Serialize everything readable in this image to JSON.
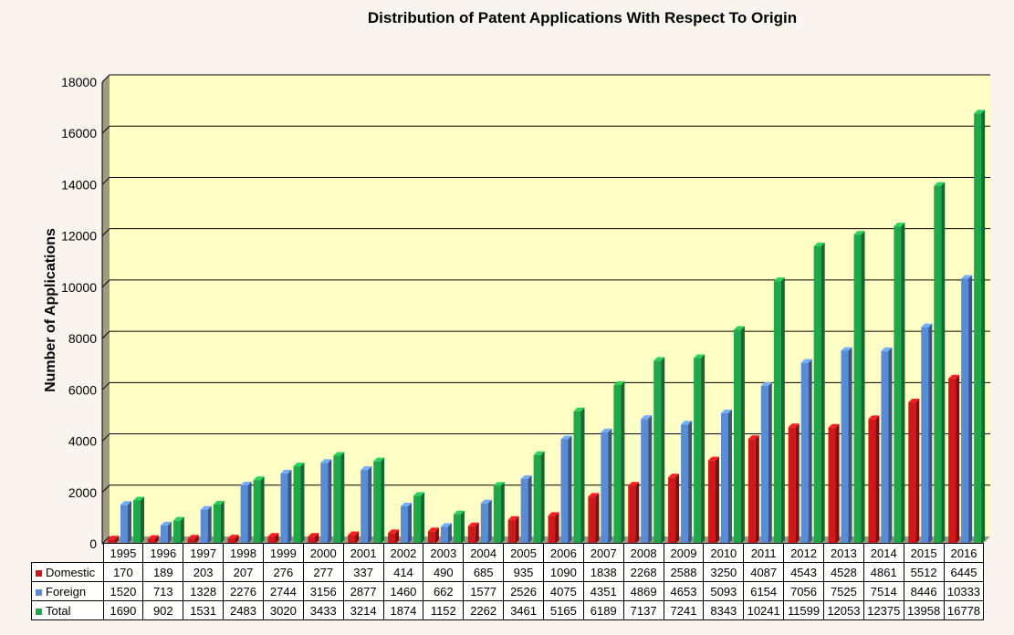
{
  "colors": {
    "plot_bg": "#ffffc6",
    "wall_side": "#a09a7e",
    "floor": "#9a9a86",
    "gridline": "#000000",
    "Domestic": "#d0181c",
    "Foreign": "#5a8bd6",
    "Total": "#1fa84a"
  },
  "chart_data": {
    "type": "bar",
    "title": "Distribution of Patent Applications With Respect To Origin",
    "ylabel": "Number of Applications",
    "xlabel": "",
    "ylim": [
      0,
      18000
    ],
    "yticks": [
      0,
      2000,
      4000,
      6000,
      8000,
      10000,
      12000,
      14000,
      16000,
      18000
    ],
    "grid": true,
    "legend": "data-table-bottom",
    "categories": [
      "1995",
      "1996",
      "1997",
      "1998",
      "1999",
      "2000",
      "2001",
      "2002",
      "2003",
      "2004",
      "2005",
      "2006",
      "2007",
      "2008",
      "2009",
      "2010",
      "2011",
      "2012",
      "2013",
      "2014",
      "2015",
      "2016"
    ],
    "series": [
      {
        "name": "Domestic",
        "values": [
          170,
          189,
          203,
          207,
          276,
          277,
          337,
          414,
          490,
          685,
          935,
          1090,
          1838,
          2268,
          2588,
          3250,
          4087,
          4543,
          4528,
          4861,
          5512,
          6445
        ]
      },
      {
        "name": "Foreign",
        "values": [
          1520,
          713,
          1328,
          2276,
          2744,
          3156,
          2877,
          1460,
          662,
          1577,
          2526,
          4075,
          4351,
          4869,
          4653,
          5093,
          6154,
          7056,
          7525,
          7514,
          8446,
          10333
        ]
      },
      {
        "name": "Total",
        "values": [
          1690,
          902,
          1531,
          2483,
          3020,
          3433,
          3214,
          1874,
          1152,
          2262,
          3461,
          5165,
          6189,
          7137,
          7241,
          8343,
          10241,
          11599,
          12053,
          12375,
          13958,
          16778
        ]
      }
    ]
  }
}
